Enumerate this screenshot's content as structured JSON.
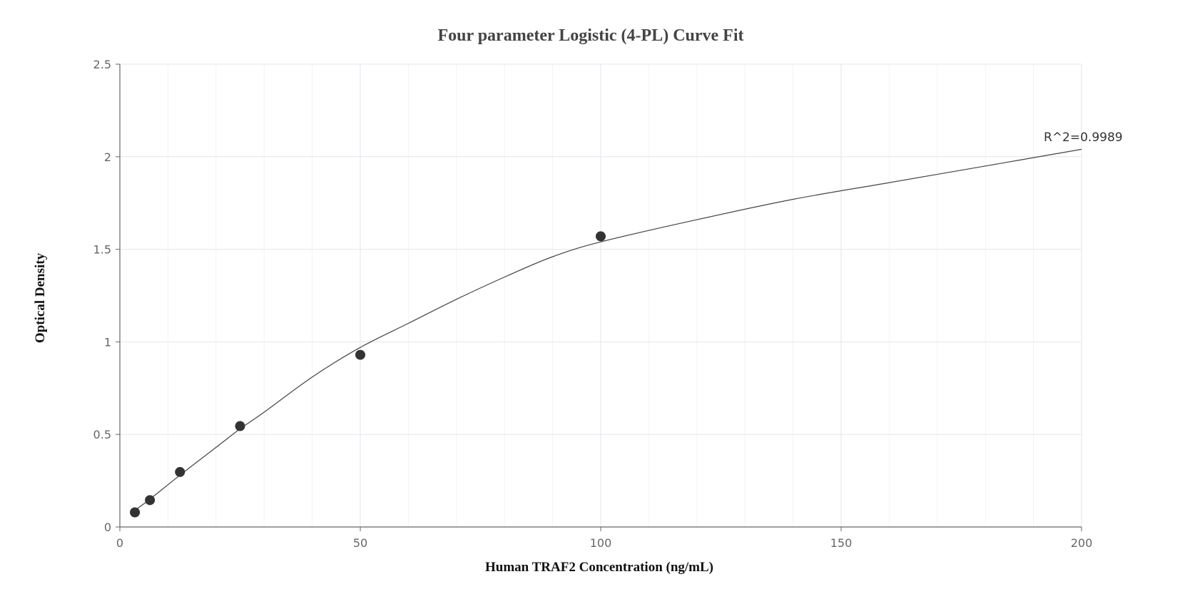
{
  "chart_data": {
    "type": "scatter",
    "title": "Four parameter Logistic (4-PL) Curve Fit",
    "xlabel": "Human TRAF2 Concentration (ng/mL)",
    "ylabel": "Optical Density",
    "xlim": [
      0,
      200
    ],
    "ylim": [
      0,
      2.5
    ],
    "x_ticks": [
      "0",
      "50",
      "100",
      "150",
      "200"
    ],
    "y_ticks": [
      "0",
      "0.5",
      "1",
      "1.5",
      "2",
      "2.5"
    ],
    "grid": true,
    "points": [
      {
        "x": 3.125,
        "y": 0.079
      },
      {
        "x": 6.25,
        "y": 0.145
      },
      {
        "x": 12.5,
        "y": 0.297
      },
      {
        "x": 25,
        "y": 0.545
      },
      {
        "x": 50,
        "y": 0.93
      },
      {
        "x": 100,
        "y": 1.57
      }
    ],
    "fit_curve": [
      {
        "x": 3.125,
        "y": 0.09
      },
      {
        "x": 6.25,
        "y": 0.15
      },
      {
        "x": 12.5,
        "y": 0.28
      },
      {
        "x": 20,
        "y": 0.43
      },
      {
        "x": 25,
        "y": 0.53
      },
      {
        "x": 30,
        "y": 0.62
      },
      {
        "x": 40,
        "y": 0.81
      },
      {
        "x": 50,
        "y": 0.97
      },
      {
        "x": 60,
        "y": 1.1
      },
      {
        "x": 70,
        "y": 1.23
      },
      {
        "x": 80,
        "y": 1.35
      },
      {
        "x": 90,
        "y": 1.46
      },
      {
        "x": 100,
        "y": 1.54
      },
      {
        "x": 120,
        "y": 1.66
      },
      {
        "x": 140,
        "y": 1.77
      },
      {
        "x": 160,
        "y": 1.86
      },
      {
        "x": 180,
        "y": 1.95
      },
      {
        "x": 200,
        "y": 2.04
      }
    ],
    "annotation": "R^2=0.9989"
  }
}
